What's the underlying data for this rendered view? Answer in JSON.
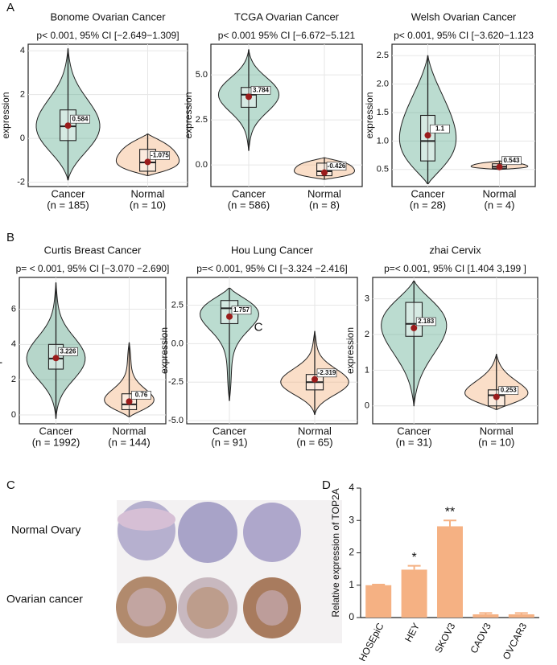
{
  "panel_labels": [
    "A",
    "B",
    "C",
    "D"
  ],
  "tissue": {
    "row_labels": [
      "Normal Ovary",
      "Ovarian cancer"
    ]
  },
  "chart_data": [
    {
      "type": "violin",
      "title": "Bonome Ovarian Cancer",
      "stat": "p< 0.001, 95% CI [−2.649−1.309]",
      "ylabel": "expression",
      "categories": [
        "Cancer",
        "Normal"
      ],
      "n_labels": [
        "(n = 185)",
        "(n = 10)"
      ],
      "colors": [
        "#3d9a78",
        "#f0a060"
      ],
      "ylim": [
        -2.2,
        4.3
      ],
      "yticks": [
        -2,
        0,
        2,
        4
      ],
      "groups": [
        {
          "min": -1.9,
          "q1": -0.1,
          "median": 0.55,
          "q3": 1.3,
          "max": 4.1,
          "mean": 0.584
        },
        {
          "min": -1.7,
          "q1": -1.5,
          "median": -1.1,
          "q3": -0.5,
          "max": 0.2,
          "mean": -1.075
        }
      ]
    },
    {
      "type": "violin",
      "title": "TCGA Ovarian Cancer",
      "stat": "p< 0.001 95% CI [−6.672−5.121",
      "ylabel": "expression",
      "categories": [
        "Cancer",
        "Normal"
      ],
      "n_labels": [
        "(n = 586)",
        "(n = 8)"
      ],
      "colors": [
        "#3d9a78",
        "#f0a060"
      ],
      "ylim": [
        -1.2,
        6.7
      ],
      "yticks": [
        {
          "value": 0,
          "label": "0.0"
        },
        {
          "value": 2.5,
          "label": "2.5"
        },
        {
          "value": 5,
          "label": "5.0"
        }
      ],
      "groups": [
        {
          "min": 0.8,
          "q1": 3.2,
          "median": 3.9,
          "q3": 4.3,
          "max": 6.4,
          "mean": 3.784
        },
        {
          "min": -0.8,
          "q1": -0.6,
          "median": -0.35,
          "q3": 0.1,
          "max": 0.4,
          "mean": -0.426
        }
      ]
    },
    {
      "type": "violin",
      "title": "Welsh  Ovarian Cancer",
      "stat": "p< 0.001, 95% CI [−3.620−1.123",
      "ylabel": "expression",
      "categories": [
        "Cancer",
        "Normal"
      ],
      "n_labels": [
        "(n = 28)",
        "(n = 4)"
      ],
      "colors": [
        "#3d9a78",
        "#f0a060"
      ],
      "ylim": [
        0.2,
        2.7
      ],
      "yticks": [
        {
          "value": 0.5,
          "label": "0.5"
        },
        {
          "value": 1,
          "label": "1.0"
        },
        {
          "value": 1.5,
          "label": "1.5"
        },
        {
          "value": 2,
          "label": "2.0"
        },
        {
          "value": 2.5,
          "label": "2.5"
        }
      ],
      "groups": [
        {
          "min": 0.25,
          "q1": 0.65,
          "median": 1.0,
          "q3": 1.45,
          "max": 2.5,
          "mean": 1.1
        },
        {
          "min": 0.5,
          "q1": 0.52,
          "median": 0.55,
          "q3": 0.6,
          "max": 0.65,
          "mean": 0.543
        }
      ]
    },
    {
      "type": "violin",
      "title": "Curtis Breast Cancer",
      "stat": "p= < 0.001, 95% CI [−3.070 −2.690]",
      "ylabel": "expression",
      "categories": [
        "Cancer",
        "Normal"
      ],
      "n_labels": [
        "(n = 1992)",
        "(n = 144)"
      ],
      "colors": [
        "#2e8a66",
        "#f0a060"
      ],
      "ylim": [
        -0.5,
        7.8
      ],
      "yticks": [
        0,
        2,
        4,
        6
      ],
      "groups": [
        {
          "min": -0.2,
          "q1": 2.6,
          "median": 3.2,
          "q3": 4.0,
          "max": 7.5,
          "mean": 3.226
        },
        {
          "min": -0.1,
          "q1": 0.3,
          "median": 0.6,
          "q3": 1.2,
          "max": 4.1,
          "mean": 0.76
        }
      ]
    },
    {
      "type": "violin",
      "title": "Hou Lung Cancer",
      "stat": "p=< 0.001, 95% CI [−3.324 −2.416]",
      "ylabel": "expression",
      "categories": [
        "Cancer",
        "Normal"
      ],
      "n_labels": [
        "(n = 91)",
        "(n = 65)"
      ],
      "colors": [
        "#3d9a78",
        "#f0a060"
      ],
      "annotation": "C",
      "ylim": [
        -5.2,
        4.3
      ],
      "yticks": [
        {
          "value": -5,
          "label": "-5.0"
        },
        {
          "value": -2.5,
          "label": "-2.5"
        },
        {
          "value": 0,
          "label": "0.0"
        },
        {
          "value": 2.5,
          "label": "2.5"
        }
      ],
      "groups": [
        {
          "min": -3.7,
          "q1": 1.3,
          "median": 2.3,
          "q3": 2.8,
          "max": 3.6,
          "mean": 1.757
        },
        {
          "min": -4.6,
          "q1": -3.0,
          "median": -2.5,
          "q3": -2.0,
          "max": 0.8,
          "mean": -2.319
        }
      ]
    },
    {
      "type": "violin",
      "title": "zhai  Cervix",
      "stat": "p=< 0.001, 95% CI [1.404  3,199 ]",
      "ylabel": "expression",
      "categories": [
        "Cancer",
        "Normal"
      ],
      "n_labels": [
        "(n = 31)",
        "(n = 10)"
      ],
      "colors": [
        "#3d9a78",
        "#f0a060"
      ],
      "ylim": [
        -0.5,
        3.6
      ],
      "yticks": [
        0,
        1,
        2,
        3
      ],
      "groups": [
        {
          "min": 0,
          "q1": 1.95,
          "median": 2.3,
          "q3": 2.9,
          "max": 3.5,
          "mean": 2.183
        },
        {
          "min": -0.1,
          "q1": 0,
          "median": 0.3,
          "q3": 0.45,
          "max": 1.45,
          "mean": 0.253
        }
      ]
    },
    {
      "type": "bar",
      "ylabel": "Relative expression of TOP2A",
      "categories": [
        "HOSEpiC",
        "HEY",
        "SKOV3",
        "CAOV3",
        "OVCAR3"
      ],
      "values": [
        1.0,
        1.48,
        2.82,
        0.1,
        0.1
      ],
      "errors": [
        0.02,
        0.12,
        0.18,
        0.04,
        0.04
      ],
      "significance": [
        null,
        "*",
        "**",
        null,
        null
      ],
      "color": "#f5b183",
      "ylim": [
        0,
        4
      ],
      "yticks": [
        0,
        1,
        2,
        3,
        4
      ]
    }
  ]
}
